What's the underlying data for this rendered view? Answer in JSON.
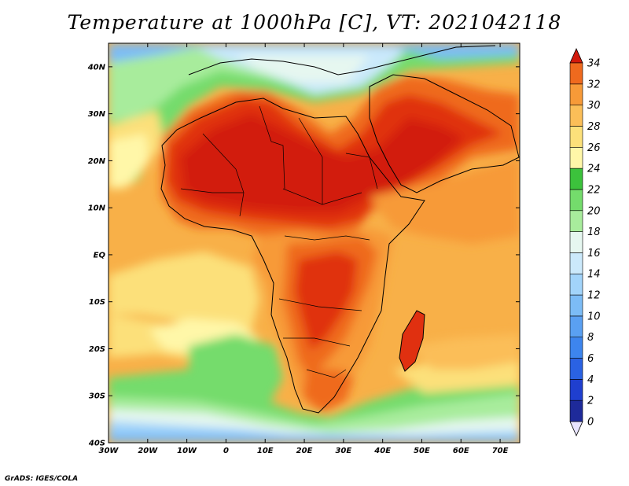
{
  "title": "Temperature at 1000hPa [C], VT: 2021042118",
  "credit": "GrADS: IGES/COLA",
  "map": {
    "lat_range": [
      -40,
      45
    ],
    "lon_range": [
      -30,
      75
    ],
    "lat_ticks": [
      {
        "lat": 40,
        "label": "40N"
      },
      {
        "lat": 30,
        "label": "30N"
      },
      {
        "lat": 20,
        "label": "20N"
      },
      {
        "lat": 10,
        "label": "10N"
      },
      {
        "lat": 0,
        "label": "EQ"
      },
      {
        "lat": -10,
        "label": "10S"
      },
      {
        "lat": -20,
        "label": "20S"
      },
      {
        "lat": -30,
        "label": "30S"
      },
      {
        "lat": -40,
        "label": "40S"
      }
    ],
    "lon_ticks": [
      {
        "lon": -30,
        "label": "30W"
      },
      {
        "lon": -20,
        "label": "20W"
      },
      {
        "lon": -10,
        "label": "10W"
      },
      {
        "lon": 0,
        "label": "0"
      },
      {
        "lon": 10,
        "label": "10E"
      },
      {
        "lon": 20,
        "label": "20E"
      },
      {
        "lon": 30,
        "label": "30E"
      },
      {
        "lon": 40,
        "label": "40E"
      },
      {
        "lon": 50,
        "label": "50E"
      },
      {
        "lon": 60,
        "label": "60E"
      },
      {
        "lon": 70,
        "label": "70E"
      }
    ]
  },
  "colorbar": {
    "unit": "C",
    "levels": [
      0,
      2,
      4,
      6,
      8,
      10,
      12,
      14,
      16,
      18,
      20,
      22,
      24,
      26,
      28,
      30,
      32,
      34
    ],
    "colors": [
      "#1e2a9a",
      "#1f3fcf",
      "#2a62e3",
      "#3d85ee",
      "#5aa0f2",
      "#7cbcf6",
      "#a2d4fa",
      "#cbe9fb",
      "#e6f7f0",
      "#a8ec9c",
      "#74dc6c",
      "#3cc23c",
      "#fff7a8",
      "#fce07a",
      "#fbbe58",
      "#f79a38",
      "#ef6a1e",
      "#e03010",
      "#d21a0c"
    ]
  },
  "chart_data": {
    "type": "heatmap",
    "title": "Temperature at 1000hPa [C], VT: 2021042118",
    "variable": "Temperature at 1000hPa",
    "unit": "C",
    "valid_time": "2021042118",
    "x_axis": {
      "range": [
        -30,
        75
      ],
      "ticks": [
        "30W",
        "20W",
        "10W",
        "0",
        "10E",
        "20E",
        "30E",
        "40E",
        "50E",
        "60E",
        "70E"
      ]
    },
    "y_axis": {
      "range": [
        -40,
        45
      ],
      "ticks": [
        "40S",
        "30S",
        "20S",
        "10S",
        "EQ",
        "10N",
        "20N",
        "30N",
        "40N"
      ]
    },
    "colorbar_levels": [
      0,
      2,
      4,
      6,
      8,
      10,
      12,
      14,
      16,
      18,
      20,
      22,
      24,
      26,
      28,
      30,
      32,
      34
    ]
  }
}
